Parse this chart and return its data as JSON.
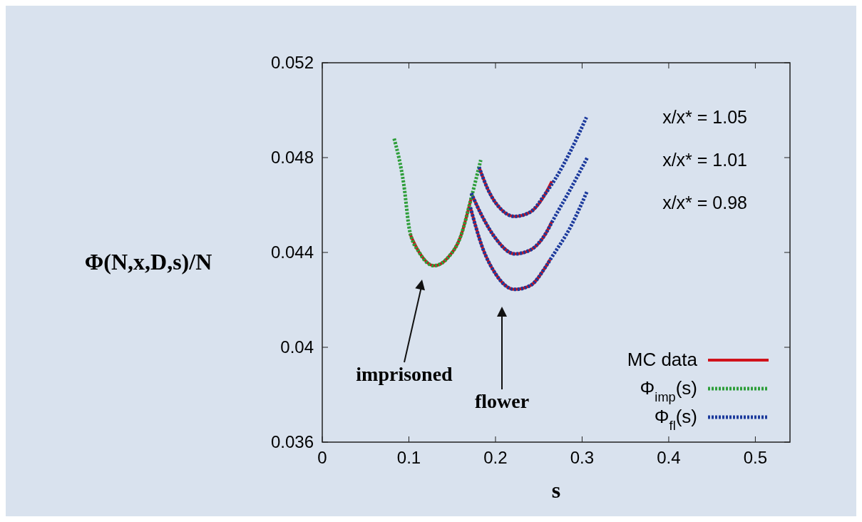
{
  "chart_data": {
    "type": "line",
    "xlabel": "s",
    "ylabel": "Φ(N,x,D,s)/N",
    "xlim": [
      0,
      0.54
    ],
    "ylim": [
      0.036,
      0.052
    ],
    "xticks": [
      0,
      0.1,
      0.2,
      0.3,
      0.4,
      0.5
    ],
    "yticks": [
      0.036,
      0.04,
      0.044,
      0.048,
      0.052
    ],
    "grid": false,
    "legend": "bottom right",
    "marker": "none",
    "series": [
      {
        "name": "MC data",
        "color": "#d0121b",
        "line_style": "solid",
        "x": [
          0.101,
          0.112,
          0.129,
          0.145,
          0.16,
          0.172
        ],
        "values": [
          0.0448,
          0.044,
          0.04344,
          0.04378,
          0.0447,
          0.0463
        ]
      },
      {
        "color": "#d0121b",
        "line_style": "solid",
        "x": [
          0.181,
          0.192,
          0.207,
          0.222,
          0.24,
          0.258,
          0.265
        ],
        "values": [
          0.0476,
          0.0466,
          0.0458,
          0.04552,
          0.0457,
          0.0465,
          0.047
        ]
      },
      {
        "color": "#d0121b",
        "line_style": "solid",
        "x": [
          0.172,
          0.185,
          0.2,
          0.222,
          0.24,
          0.258,
          0.265
        ],
        "values": [
          0.0465,
          0.0455,
          0.0446,
          0.04394,
          0.0441,
          0.0448,
          0.0453
        ]
      },
      {
        "color": "#d0121b",
        "line_style": "solid",
        "x": [
          0.171,
          0.185,
          0.2,
          0.222,
          0.24,
          0.258,
          0.263
        ],
        "values": [
          0.0459,
          0.0442,
          0.0431,
          0.04244,
          0.0426,
          0.0434,
          0.0437
        ]
      },
      {
        "name": "Φ$_{imp}$(s)",
        "color": "#2e9e3a",
        "line_style": "dotted",
        "x": [
          0.083,
          0.094,
          0.101,
          0.112,
          0.129,
          0.145,
          0.16,
          0.172,
          0.183
        ],
        "values": [
          0.0488,
          0.0469,
          0.0449,
          0.044,
          0.04344,
          0.04378,
          0.0447,
          0.0463,
          0.0479
        ]
      },
      {
        "name": "Φ$_{fl}$(s)",
        "color": "#1c3a9c",
        "line_style": "dotted",
        "x": [
          0.181,
          0.192,
          0.207,
          0.222,
          0.24,
          0.258,
          0.269,
          0.287,
          0.305
        ],
        "values": [
          0.0476,
          0.0466,
          0.0458,
          0.04552,
          0.0457,
          0.0465,
          0.0471,
          0.0483,
          0.0497
        ]
      },
      {
        "color": "#1c3a9c",
        "line_style": "dotted",
        "x": [
          0.172,
          0.185,
          0.2,
          0.222,
          0.24,
          0.258,
          0.267,
          0.287,
          0.306
        ],
        "values": [
          0.0465,
          0.0455,
          0.0446,
          0.04394,
          0.0441,
          0.0448,
          0.0454,
          0.0467,
          0.048
        ]
      },
      {
        "color": "#1c3a9c",
        "line_style": "dotted",
        "x": [
          0.171,
          0.185,
          0.2,
          0.222,
          0.24,
          0.258,
          0.265,
          0.287,
          0.306
        ],
        "values": [
          0.0459,
          0.0442,
          0.0431,
          0.04244,
          0.0426,
          0.0434,
          0.0438,
          0.0451,
          0.0466
        ]
      }
    ],
    "annotations": [
      "x/x* = 1.05",
      "x/x* = 1.01",
      "x/x* = 0.98",
      "imprisoned",
      "flower"
    ]
  }
}
